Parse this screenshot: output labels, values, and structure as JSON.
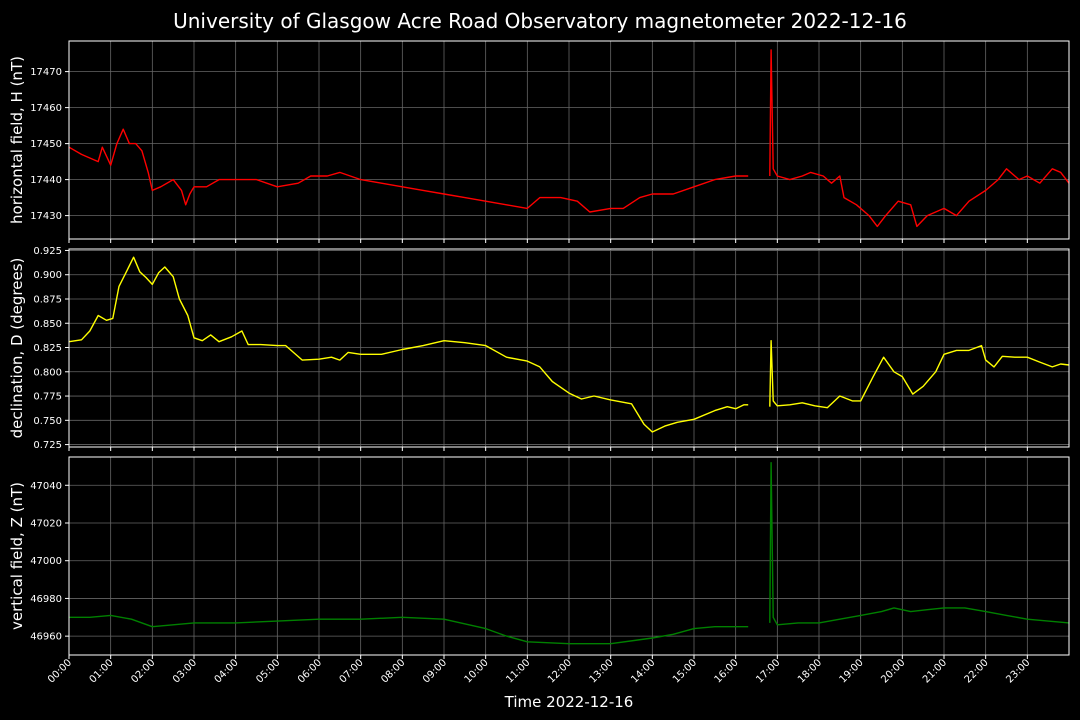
{
  "title": "University of Glasgow Acre Road Observatory magnetometer 2022-12-16",
  "xlabel": "Time 2022-12-16",
  "x_ticks": [
    "00:00",
    "01:00",
    "02:00",
    "03:00",
    "04:00",
    "05:00",
    "06:00",
    "07:00",
    "08:00",
    "09:00",
    "10:00",
    "11:00",
    "12:00",
    "13:00",
    "14:00",
    "15:00",
    "16:00",
    "17:00",
    "18:00",
    "19:00",
    "20:00",
    "21:00",
    "22:00",
    "23:00"
  ],
  "colors": {
    "background": "#000000",
    "axes": "#ffffff",
    "grid": "#666666",
    "h_line": "#ff0000",
    "d_line": "#ffff00",
    "z_line": "#008000"
  },
  "chart_data": [
    {
      "type": "line",
      "ylabel": "horizontal field, H (nT)",
      "ylim": [
        17423.5,
        17478.5
      ],
      "yticks": [
        17430,
        17440,
        17450,
        17460,
        17470
      ],
      "ytick_labels": [
        "17430",
        "17440",
        "17450",
        "17460",
        "17470"
      ],
      "xlim": [
        0,
        24
      ],
      "grid": true,
      "color": "#ff0000",
      "segments": [
        [
          [
            0,
            17449
          ],
          [
            0.3,
            17447
          ],
          [
            0.5,
            17446
          ],
          [
            0.7,
            17445
          ],
          [
            0.8,
            17449
          ],
          [
            1.0,
            17444
          ],
          [
            1.15,
            17450
          ],
          [
            1.3,
            17454
          ],
          [
            1.45,
            17450
          ],
          [
            1.6,
            17450
          ],
          [
            1.75,
            17448
          ],
          [
            1.9,
            17442
          ],
          [
            2.0,
            17437
          ],
          [
            2.2,
            17438
          ],
          [
            2.5,
            17440
          ],
          [
            2.7,
            17437
          ],
          [
            2.8,
            17433
          ],
          [
            2.9,
            17436
          ],
          [
            3.0,
            17438
          ],
          [
            3.3,
            17438
          ],
          [
            3.6,
            17440
          ],
          [
            4.0,
            17440
          ],
          [
            4.5,
            17440
          ],
          [
            5.0,
            17438
          ],
          [
            5.5,
            17439
          ],
          [
            5.8,
            17441
          ],
          [
            6.2,
            17441
          ],
          [
            6.5,
            17442
          ],
          [
            7.0,
            17440
          ],
          [
            7.5,
            17439
          ],
          [
            8.0,
            17438
          ],
          [
            8.5,
            17437
          ],
          [
            9.0,
            17436
          ],
          [
            9.5,
            17435
          ],
          [
            10.0,
            17434
          ],
          [
            10.5,
            17433
          ],
          [
            11.0,
            17432
          ],
          [
            11.3,
            17435
          ],
          [
            11.8,
            17435
          ],
          [
            12.2,
            17434
          ],
          [
            12.5,
            17431
          ],
          [
            13.0,
            17432
          ],
          [
            13.3,
            17432
          ],
          [
            13.7,
            17435
          ],
          [
            14.0,
            17436
          ],
          [
            14.5,
            17436
          ],
          [
            15.0,
            17438
          ],
          [
            15.5,
            17440
          ],
          [
            16.0,
            17441
          ],
          [
            16.3,
            17441
          ]
        ],
        [
          [
            16.82,
            17441
          ],
          [
            16.85,
            17476
          ],
          [
            16.9,
            17443
          ],
          [
            17.0,
            17441
          ],
          [
            17.3,
            17440
          ],
          [
            17.6,
            17441
          ],
          [
            17.8,
            17442
          ],
          [
            18.1,
            17441
          ],
          [
            18.3,
            17439
          ],
          [
            18.5,
            17441
          ],
          [
            18.6,
            17435
          ],
          [
            18.9,
            17433
          ],
          [
            19.2,
            17430
          ],
          [
            19.4,
            17427
          ],
          [
            19.6,
            17430
          ],
          [
            19.9,
            17434
          ],
          [
            20.2,
            17433
          ],
          [
            20.35,
            17427
          ],
          [
            20.6,
            17430
          ],
          [
            21.0,
            17432
          ],
          [
            21.3,
            17430
          ],
          [
            21.6,
            17434
          ],
          [
            22.0,
            17437
          ],
          [
            22.3,
            17440
          ],
          [
            22.5,
            17443
          ],
          [
            22.8,
            17440
          ],
          [
            23.0,
            17441
          ],
          [
            23.3,
            17439
          ],
          [
            23.6,
            17443
          ],
          [
            23.8,
            17442
          ],
          [
            24.0,
            17439
          ]
        ]
      ]
    },
    {
      "type": "line",
      "ylabel": "declination, D (degrees)",
      "ylim": [
        0.7225,
        0.9265
      ],
      "yticks": [
        0.725,
        0.75,
        0.775,
        0.8,
        0.825,
        0.85,
        0.875,
        0.9,
        0.925
      ],
      "ytick_labels": [
        "0.725",
        "0.750",
        "0.775",
        "0.800",
        "0.825",
        "0.850",
        "0.875",
        "0.900",
        "0.925"
      ],
      "xlim": [
        0,
        24
      ],
      "grid": true,
      "color": "#ffff00",
      "segments": [
        [
          [
            0,
            0.831
          ],
          [
            0.3,
            0.833
          ],
          [
            0.5,
            0.842
          ],
          [
            0.7,
            0.858
          ],
          [
            0.9,
            0.853
          ],
          [
            1.05,
            0.855
          ],
          [
            1.2,
            0.888
          ],
          [
            1.4,
            0.905
          ],
          [
            1.55,
            0.918
          ],
          [
            1.7,
            0.903
          ],
          [
            1.85,
            0.897
          ],
          [
            2.0,
            0.89
          ],
          [
            2.15,
            0.902
          ],
          [
            2.3,
            0.908
          ],
          [
            2.5,
            0.898
          ],
          [
            2.65,
            0.875
          ],
          [
            2.85,
            0.858
          ],
          [
            3.0,
            0.835
          ],
          [
            3.2,
            0.832
          ],
          [
            3.4,
            0.838
          ],
          [
            3.6,
            0.831
          ],
          [
            3.9,
            0.836
          ],
          [
            4.15,
            0.842
          ],
          [
            4.3,
            0.828
          ],
          [
            4.6,
            0.828
          ],
          [
            5.0,
            0.827
          ],
          [
            5.2,
            0.827
          ],
          [
            5.6,
            0.812
          ],
          [
            6.0,
            0.813
          ],
          [
            6.3,
            0.815
          ],
          [
            6.5,
            0.812
          ],
          [
            6.7,
            0.82
          ],
          [
            7.0,
            0.818
          ],
          [
            7.5,
            0.818
          ],
          [
            8.0,
            0.823
          ],
          [
            8.5,
            0.827
          ],
          [
            9.0,
            0.832
          ],
          [
            9.5,
            0.83
          ],
          [
            10.0,
            0.827
          ],
          [
            10.5,
            0.815
          ],
          [
            11.0,
            0.811
          ],
          [
            11.3,
            0.805
          ],
          [
            11.6,
            0.79
          ],
          [
            12.0,
            0.778
          ],
          [
            12.3,
            0.772
          ],
          [
            12.6,
            0.775
          ],
          [
            13.0,
            0.771
          ],
          [
            13.5,
            0.767
          ],
          [
            13.8,
            0.746
          ],
          [
            14.0,
            0.738
          ],
          [
            14.3,
            0.744
          ],
          [
            14.6,
            0.748
          ],
          [
            15.0,
            0.751
          ],
          [
            15.5,
            0.76
          ],
          [
            15.8,
            0.764
          ],
          [
            16.0,
            0.762
          ],
          [
            16.2,
            0.766
          ],
          [
            16.3,
            0.766
          ]
        ],
        [
          [
            16.82,
            0.764
          ],
          [
            16.85,
            0.832
          ],
          [
            16.9,
            0.77
          ],
          [
            17.0,
            0.765
          ],
          [
            17.3,
            0.766
          ],
          [
            17.6,
            0.768
          ],
          [
            17.9,
            0.765
          ],
          [
            18.2,
            0.763
          ],
          [
            18.5,
            0.775
          ],
          [
            18.8,
            0.77
          ],
          [
            19.0,
            0.77
          ],
          [
            19.3,
            0.795
          ],
          [
            19.55,
            0.815
          ],
          [
            19.8,
            0.8
          ],
          [
            20.0,
            0.795
          ],
          [
            20.25,
            0.777
          ],
          [
            20.5,
            0.785
          ],
          [
            20.8,
            0.8
          ],
          [
            21.0,
            0.818
          ],
          [
            21.3,
            0.822
          ],
          [
            21.6,
            0.822
          ],
          [
            21.9,
            0.827
          ],
          [
            22.0,
            0.812
          ],
          [
            22.2,
            0.805
          ],
          [
            22.4,
            0.816
          ],
          [
            22.7,
            0.815
          ],
          [
            23.0,
            0.815
          ],
          [
            23.3,
            0.81
          ],
          [
            23.6,
            0.805
          ],
          [
            23.8,
            0.808
          ],
          [
            24.0,
            0.807
          ]
        ]
      ]
    },
    {
      "type": "line",
      "ylabel": "vertical field, Z (nT)",
      "ylim": [
        46950,
        47055
      ],
      "yticks": [
        46960,
        46980,
        47000,
        47020,
        47040
      ],
      "ytick_labels": [
        "46960",
        "46980",
        "47000",
        "47020",
        "47040"
      ],
      "xlim": [
        0,
        24
      ],
      "grid": true,
      "color": "#008000",
      "segments": [
        [
          [
            0,
            46970
          ],
          [
            0.5,
            46970
          ],
          [
            1.0,
            46971
          ],
          [
            1.5,
            46969
          ],
          [
            2.0,
            46965
          ],
          [
            2.5,
            46966
          ],
          [
            3.0,
            46967
          ],
          [
            4.0,
            46967
          ],
          [
            5.0,
            46968
          ],
          [
            6.0,
            46969
          ],
          [
            7.0,
            46969
          ],
          [
            8.0,
            46970
          ],
          [
            9.0,
            46969
          ],
          [
            10.0,
            46964
          ],
          [
            10.5,
            46960
          ],
          [
            11.0,
            46957
          ],
          [
            12.0,
            46956
          ],
          [
            13.0,
            46956
          ],
          [
            14.0,
            46959
          ],
          [
            14.5,
            46961
          ],
          [
            15.0,
            46964
          ],
          [
            15.5,
            46965
          ],
          [
            16.0,
            46965
          ],
          [
            16.3,
            46965
          ]
        ],
        [
          [
            16.82,
            46967
          ],
          [
            16.85,
            47052
          ],
          [
            16.9,
            46970
          ],
          [
            17.0,
            46966
          ],
          [
            17.5,
            46967
          ],
          [
            18.0,
            46967
          ],
          [
            18.5,
            46969
          ],
          [
            19.0,
            46971
          ],
          [
            19.5,
            46973
          ],
          [
            19.8,
            46975
          ],
          [
            20.2,
            46973
          ],
          [
            20.6,
            46974
          ],
          [
            21.0,
            46975
          ],
          [
            21.5,
            46975
          ],
          [
            22.0,
            46973
          ],
          [
            22.5,
            46971
          ],
          [
            23.0,
            46969
          ],
          [
            23.5,
            46968
          ],
          [
            24.0,
            46967
          ]
        ]
      ]
    }
  ]
}
